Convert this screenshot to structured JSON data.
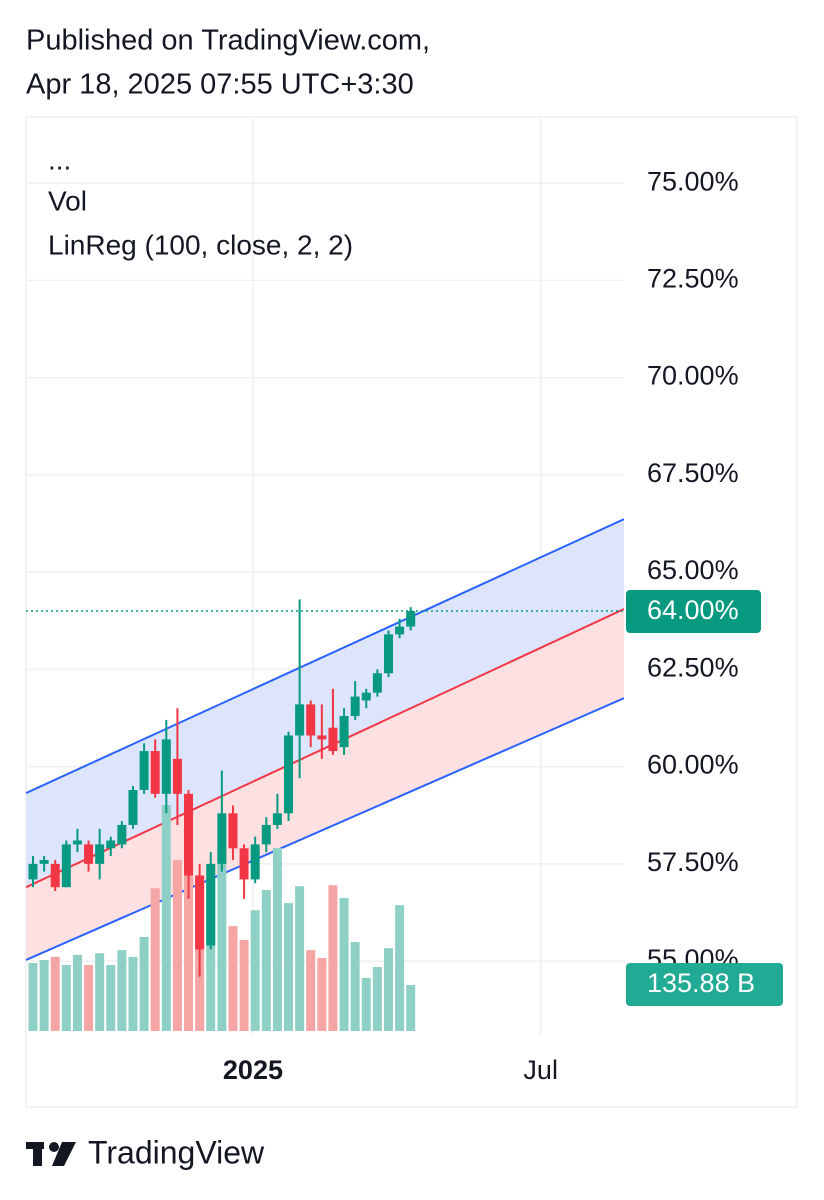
{
  "header": {
    "line1": "Published on TradingView.com,",
    "line2": "Apr 18, 2025 07:55 UTC+3:30"
  },
  "footer": {
    "brand": "TradingView"
  },
  "chart_data": {
    "type": "candlestick",
    "legend": [
      "...",
      "Vol",
      "LinReg (100, close, 2, 2)"
    ],
    "categories": [
      null,
      null,
      null,
      null,
      null,
      null,
      null,
      null,
      null,
      null,
      null,
      null,
      null,
      null,
      null,
      null,
      null,
      null,
      null,
      null,
      null,
      null,
      null,
      null,
      null,
      null,
      null,
      null,
      null,
      null,
      null,
      null,
      null,
      null,
      null
    ],
    "open": [
      57.1,
      57.5,
      57.5,
      56.9,
      58.0,
      58.0,
      57.5,
      57.9,
      58.0,
      58.5,
      59.4,
      60.4,
      59.3,
      60.2,
      59.3,
      57.2,
      55.4,
      57.5,
      58.8,
      57.9,
      57.1,
      58.0,
      58.5,
      58.8,
      60.8,
      61.6,
      60.8,
      61.0,
      60.5,
      61.3,
      61.7,
      61.9,
      62.4,
      63.4,
      63.6
    ],
    "high": [
      57.7,
      57.7,
      57.6,
      58.1,
      58.4,
      58.1,
      58.4,
      58.2,
      58.6,
      59.5,
      60.6,
      60.7,
      61.2,
      61.5,
      59.4,
      57.5,
      57.8,
      59.9,
      59.0,
      58.0,
      58.2,
      58.7,
      59.3,
      60.9,
      64.3,
      61.7,
      61.6,
      62.0,
      61.5,
      62.2,
      62.0,
      62.5,
      63.5,
      63.8,
      64.1
    ],
    "low": [
      56.9,
      57.3,
      56.8,
      56.9,
      57.8,
      57.3,
      57.1,
      57.7,
      57.9,
      58.4,
      59.3,
      59.2,
      58.8,
      58.5,
      56.6,
      54.6,
      55.3,
      57.3,
      57.6,
      56.6,
      57.0,
      57.8,
      58.4,
      58.6,
      59.7,
      60.5,
      60.2,
      60.3,
      60.3,
      61.2,
      61.5,
      61.8,
      62.3,
      63.3,
      63.5
    ],
    "close": [
      57.5,
      57.6,
      56.9,
      58.0,
      58.1,
      57.5,
      58.0,
      58.1,
      58.5,
      59.4,
      60.4,
      59.3,
      60.7,
      59.3,
      57.2,
      55.3,
      57.5,
      58.8,
      57.9,
      57.1,
      58.0,
      58.5,
      58.8,
      60.8,
      61.6,
      60.8,
      60.7,
      60.4,
      61.3,
      61.8,
      61.9,
      62.4,
      63.4,
      63.6,
      64.0
    ],
    "volume": [
      201,
      210,
      219,
      195,
      225,
      195,
      230,
      195,
      239,
      219,
      278,
      422,
      668,
      505,
      609,
      446,
      452,
      541,
      310,
      269,
      357,
      417,
      541,
      378,
      428,
      239,
      216,
      431,
      393,
      263,
      157,
      189,
      245,
      372,
      135.88
    ],
    "volume_label": "135.88 B",
    "last_price_label": "64.00%",
    "up_color": "#089981",
    "down_color": "#f23645",
    "volume_up_color": "#8fd0c6",
    "volume_down_color": "#f5a5a4",
    "linreg": {
      "upper": [
        59.32,
        66.36
      ],
      "middle": [
        56.9,
        64.05
      ],
      "lower": [
        55.03,
        61.76
      ],
      "upper_color": "#2962ff",
      "middle_color": "#f23645",
      "upper_fill": "#dde5fd",
      "lower_fill": "#fde0e1"
    },
    "xlim": [
      -0.63,
      53.2
    ],
    "xticks": [
      {
        "value": 19.8,
        "label": "2025"
      },
      {
        "value": 45.7,
        "label": "Jul"
      }
    ],
    "ylim": [
      53.1,
      76.7
    ],
    "yticks": [
      {
        "value": 55,
        "label": "55.00%"
      },
      {
        "value": 57.5,
        "label": "57.50%"
      },
      {
        "value": 60,
        "label": "60.00%"
      },
      {
        "value": 62.5,
        "label": "62.50%"
      },
      {
        "value": 65,
        "label": "65.00%"
      },
      {
        "value": 67.5,
        "label": "67.50%"
      },
      {
        "value": 70,
        "label": "70.00%"
      },
      {
        "value": 72.5,
        "label": "72.50%"
      },
      {
        "value": 75,
        "label": "75.00%"
      }
    ],
    "grid": true
  }
}
